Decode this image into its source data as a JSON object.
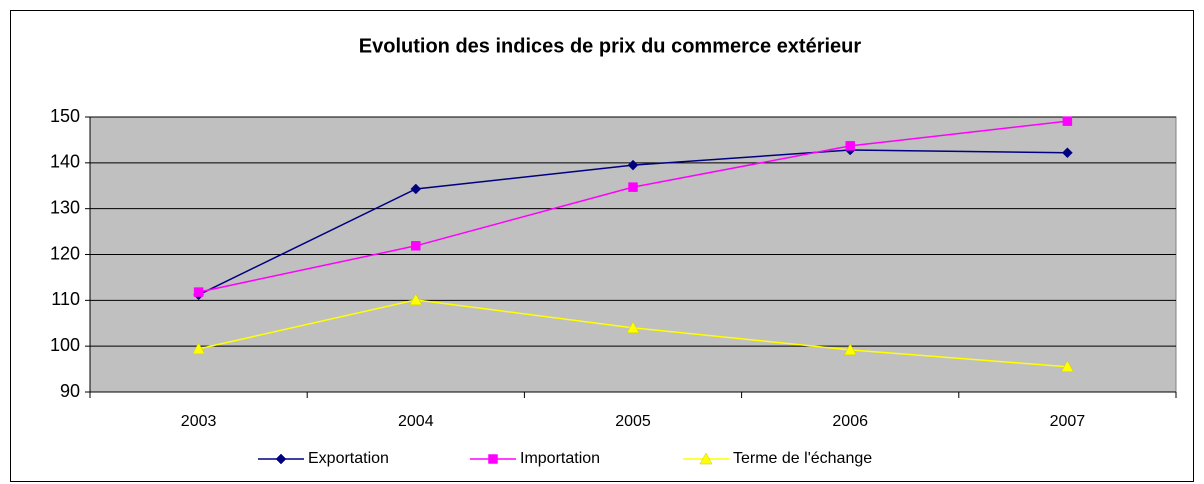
{
  "chart_data": {
    "type": "line",
    "title": "Evolution des indices de prix du commerce extérieur",
    "categories": [
      "2003",
      "2004",
      "2005",
      "2006",
      "2007"
    ],
    "series": [
      {
        "name": "Exportation",
        "color": "#000080",
        "marker": "diamond",
        "values": [
          111.2,
          134.3,
          139.5,
          142.8,
          142.2
        ]
      },
      {
        "name": "Importation",
        "color": "#ff00ff",
        "marker": "square",
        "values": [
          111.8,
          121.9,
          134.7,
          143.7,
          149.1
        ]
      },
      {
        "name": "Terme de l'échange",
        "color": "#ffff00",
        "marker": "triangle",
        "values": [
          99.4,
          110.1,
          104,
          99.2,
          95.5
        ]
      }
    ],
    "ylim": [
      90,
      150
    ],
    "yticks": [
      90,
      100,
      110,
      120,
      130,
      140,
      150
    ],
    "grid": true,
    "plot_background": "#c0c0c0",
    "legend": "bottom"
  }
}
